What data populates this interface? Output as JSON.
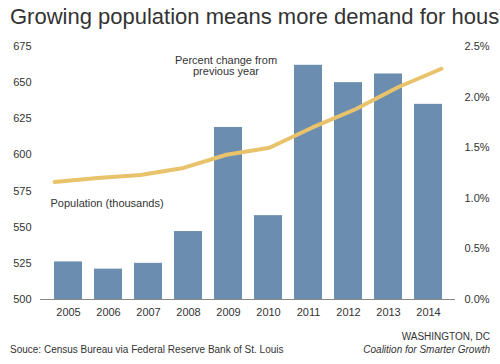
{
  "chart_data": {
    "type": "bar",
    "title": "Growing population means more demand for housing",
    "categories": [
      "2005",
      "2006",
      "2007",
      "2008",
      "2009",
      "2010",
      "2011",
      "2012",
      "2013",
      "2014"
    ],
    "series": [
      {
        "name": "Population (thousands)",
        "type": "bar",
        "color": "#6b8db0",
        "values": [
          526,
          521,
          525,
          547,
          619,
          558,
          662,
          650,
          656,
          635
        ]
      },
      {
        "name": "Percent change from previous year",
        "type": "line",
        "axis": "y2",
        "color": "#e8c36b",
        "values": [
          1.16,
          1.2,
          1.23,
          1.3,
          1.43,
          1.5,
          1.7,
          1.88,
          2.1,
          2.28
        ]
      }
    ],
    "ylim": [
      500,
      675
    ],
    "yticks": [
      500,
      525,
      550,
      575,
      600,
      625,
      650,
      675
    ],
    "y2lim": [
      0,
      2.5
    ],
    "y2ticks": [
      {
        "value": 0,
        "label": "0.0%"
      },
      {
        "value": 0.5,
        "label": "0.5%"
      },
      {
        "value": 1,
        "label": "1.0%"
      },
      {
        "value": 1.5,
        "label": "1.5%"
      },
      {
        "value": 2,
        "label": "2.0%"
      },
      {
        "value": 2.5,
        "label": "2.5%"
      }
    ],
    "source": "Souce: Census Bureau via Federal Reserve Bank of St. Louis",
    "credit": [
      "WASHINGTON, DC",
      "Coalition for Smarter Growth"
    ]
  }
}
